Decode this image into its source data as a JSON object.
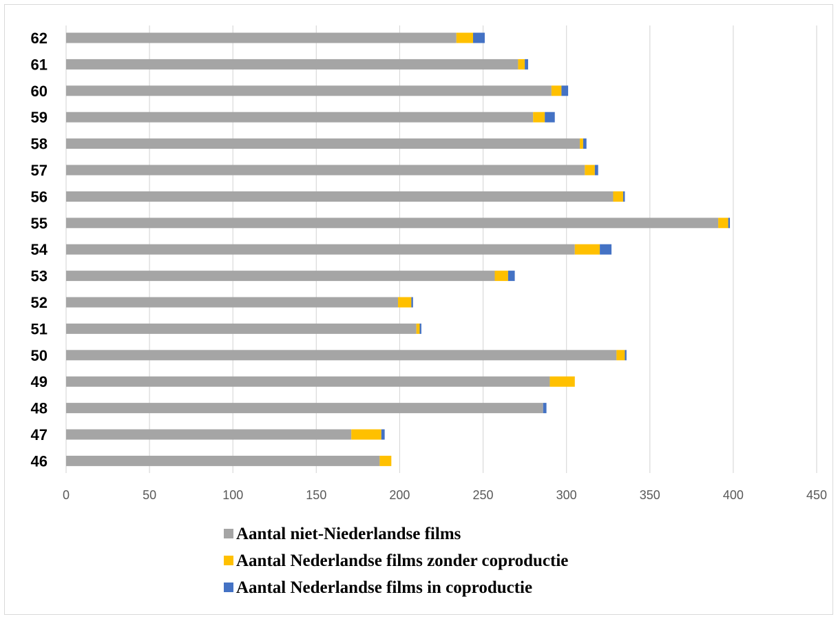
{
  "chart_data": {
    "type": "bar",
    "orientation": "horizontal",
    "stacked": true,
    "categories": [
      "62",
      "61",
      "60",
      "59",
      "58",
      "57",
      "56",
      "55",
      "54",
      "53",
      "52",
      "51",
      "50",
      "49",
      "48",
      "47",
      "46"
    ],
    "series": [
      {
        "name": "Aantal niet-Niederlandse films",
        "color": "#a5a5a5",
        "values": [
          234,
          271,
          291,
          280,
          308,
          311,
          328,
          391,
          305,
          257,
          199,
          210,
          330,
          290,
          286,
          171,
          188
        ]
      },
      {
        "name": "Aantal Nederlandse films zonder coproductie",
        "color": "#ffc000",
        "values": [
          10,
          4,
          6,
          7,
          2,
          6,
          6,
          6,
          15,
          8,
          8,
          2,
          5,
          15,
          0,
          18,
          7
        ]
      },
      {
        "name": "Aantal Nederlandse films in coproductie",
        "color": "#4472c4",
        "values": [
          7,
          2,
          4,
          6,
          2,
          2,
          1,
          1,
          7,
          4,
          1,
          1,
          1,
          0,
          2,
          2,
          0
        ]
      }
    ],
    "xlim": [
      0,
      450
    ],
    "xticks": [
      0,
      50,
      100,
      150,
      200,
      250,
      300,
      350,
      400,
      450
    ],
    "xticklabels": [
      "0",
      "50",
      "100",
      "150",
      "200",
      "250",
      "300",
      "350",
      "400",
      "450"
    ],
    "grid": "vertical",
    "legend_position": "bottom",
    "title": "",
    "xlabel": "",
    "ylabel": ""
  }
}
